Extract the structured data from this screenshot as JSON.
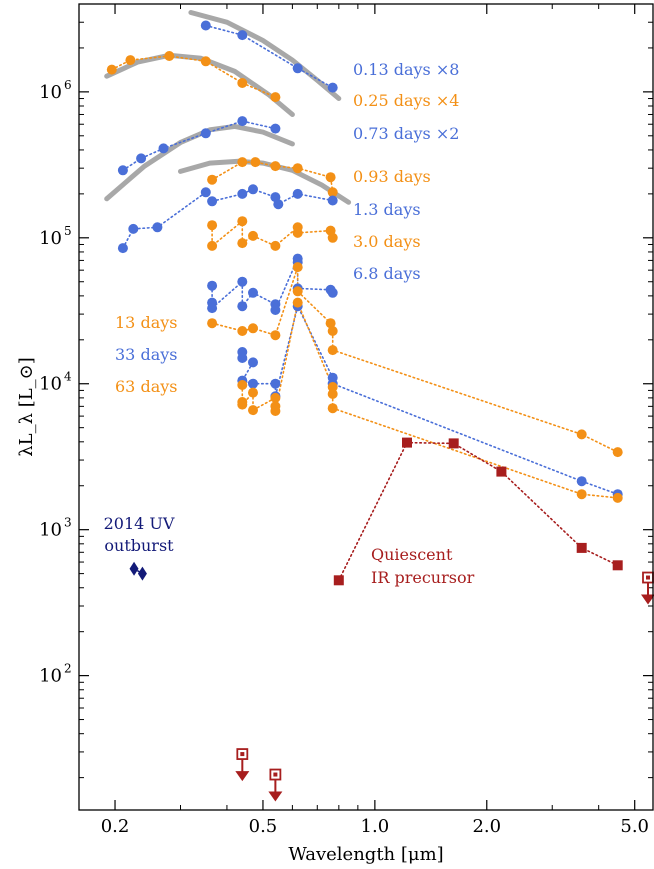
{
  "chart_data": {
    "type": "scatter",
    "title": "",
    "xlabel": "Wavelength [μm]",
    "ylabel": "λL_λ [L_⊙]",
    "xscale": "log",
    "yscale": "log",
    "xlim": [
      0.16,
      5.6
    ],
    "ylim": [
      12,
      4000000
    ],
    "x_ticks": [
      {
        "value": 0.2,
        "label": "0.2"
      },
      {
        "value": 0.5,
        "label": "0.5"
      },
      {
        "value": 1.0,
        "label": "1.0"
      },
      {
        "value": 2.0,
        "label": "2.0"
      },
      {
        "value": 5.0,
        "label": "5.0"
      }
    ],
    "y_ticks": [
      {
        "value": 100,
        "base": "10",
        "exp": "2"
      },
      {
        "value": 1000,
        "base": "10",
        "exp": "3"
      },
      {
        "value": 10000,
        "base": "10",
        "exp": "4"
      },
      {
        "value": 100000,
        "base": "10",
        "exp": "5"
      },
      {
        "value": 1000000,
        "base": "10",
        "exp": "6"
      }
    ],
    "legend_placement": "right of series, inline",
    "colors": {
      "blue": "#4a6fd8",
      "orange": "#f39016",
      "red": "#a71e1e",
      "navy": "#131a78",
      "fit": "#9e9e9e"
    },
    "series": [
      {
        "name": "0.13 days ×8",
        "color": "#4a6fd8",
        "marker": "circle",
        "points": [
          [
            0.351,
            2850000
          ],
          [
            0.44,
            2450000
          ],
          [
            0.62,
            1450000
          ],
          [
            0.77,
            1070000
          ]
        ]
      },
      {
        "name": "0.25 days ×4",
        "color": "#f39016",
        "marker": "circle",
        "points": [
          [
            0.196,
            1420000
          ],
          [
            0.22,
            1650000
          ],
          [
            0.28,
            1760000
          ],
          [
            0.351,
            1620000
          ],
          [
            0.44,
            1150000
          ],
          [
            0.54,
            920000
          ]
        ]
      },
      {
        "name": "0.73 days ×2",
        "color": "#4a6fd8",
        "marker": "circle",
        "points": [
          [
            0.21,
            290000
          ],
          [
            0.235,
            350000
          ],
          [
            0.27,
            410000
          ],
          [
            0.351,
            520000
          ],
          [
            0.44,
            630000
          ],
          [
            0.54,
            560000
          ]
        ]
      },
      {
        "name": "0.93 days",
        "color": "#f39016",
        "marker": "circle",
        "points": [
          [
            0.365,
            250000
          ],
          [
            0.44,
            330000
          ],
          [
            0.477,
            330000
          ],
          [
            0.54,
            310000
          ],
          [
            0.62,
            300000
          ],
          [
            0.76,
            260000
          ],
          [
            0.77,
            205000
          ]
        ]
      },
      {
        "name": "1.3 days",
        "color": "#4a6fd8",
        "marker": "circle",
        "points": [
          [
            0.21,
            85000
          ],
          [
            0.224,
            115000
          ],
          [
            0.26,
            118000
          ],
          [
            0.351,
            205000
          ],
          [
            0.365,
            178000
          ],
          [
            0.44,
            200000
          ],
          [
            0.47,
            215000
          ],
          [
            0.54,
            190000
          ],
          [
            0.55,
            170000
          ],
          [
            0.62,
            200000
          ],
          [
            0.77,
            180000
          ]
        ]
      },
      {
        "name": "3.0 days",
        "color": "#f39016",
        "marker": "circle",
        "points": [
          [
            0.365,
            122000
          ],
          [
            0.365,
            88000
          ],
          [
            0.44,
            130000
          ],
          [
            0.44,
            92000
          ],
          [
            0.47,
            103000
          ],
          [
            0.54,
            88000
          ],
          [
            0.62,
            118000
          ],
          [
            0.62,
            108000
          ],
          [
            0.76,
            112000
          ],
          [
            0.77,
            100000
          ]
        ]
      },
      {
        "name": "6.8 days",
        "color": "#4a6fd8",
        "marker": "circle",
        "points": [
          [
            0.365,
            47000
          ],
          [
            0.365,
            36000
          ],
          [
            0.365,
            33000
          ],
          [
            0.44,
            50000
          ],
          [
            0.44,
            34000
          ],
          [
            0.47,
            42000
          ],
          [
            0.54,
            35000
          ],
          [
            0.54,
            32000
          ],
          [
            0.62,
            72000
          ],
          [
            0.62,
            68000
          ],
          [
            0.62,
            45000
          ],
          [
            0.76,
            44000
          ],
          [
            0.77,
            42000
          ]
        ]
      },
      {
        "name": "13 days",
        "color": "#f39016",
        "marker": "circle",
        "points": [
          [
            0.365,
            26000
          ],
          [
            0.44,
            23000
          ],
          [
            0.47,
            24000
          ],
          [
            0.54,
            21500
          ],
          [
            0.62,
            63000
          ],
          [
            0.62,
            43000
          ],
          [
            0.76,
            26000
          ],
          [
            0.77,
            23000
          ],
          [
            0.77,
            17000
          ],
          [
            3.6,
            4500
          ],
          [
            4.5,
            3400
          ]
        ]
      },
      {
        "name": "33 days",
        "color": "#4a6fd8",
        "marker": "circle",
        "points": [
          [
            0.44,
            16500
          ],
          [
            0.44,
            15000
          ],
          [
            0.47,
            14000
          ],
          [
            0.44,
            10500
          ],
          [
            0.47,
            10000
          ],
          [
            0.54,
            10000
          ],
          [
            0.54,
            8200
          ],
          [
            0.62,
            34000
          ],
          [
            0.77,
            11000
          ],
          [
            0.77,
            10000
          ],
          [
            3.6,
            2150
          ],
          [
            4.5,
            1750
          ]
        ]
      },
      {
        "name": "63 days",
        "color": "#f39016",
        "marker": "circle",
        "points": [
          [
            0.44,
            9800
          ],
          [
            0.44,
            7500
          ],
          [
            0.44,
            7200
          ],
          [
            0.47,
            8700
          ],
          [
            0.47,
            6600
          ],
          [
            0.54,
            8000
          ],
          [
            0.54,
            7000
          ],
          [
            0.54,
            6500
          ],
          [
            0.62,
            36000
          ],
          [
            0.77,
            9500
          ],
          [
            0.77,
            8500
          ],
          [
            0.77,
            6800
          ],
          [
            3.6,
            1750
          ],
          [
            4.5,
            1650
          ]
        ]
      },
      {
        "name": "2014 UV outburst",
        "color": "#131a78",
        "marker": "diamond",
        "points": [
          [
            0.225,
            540
          ],
          [
            0.237,
            500
          ]
        ]
      },
      {
        "name": "Quiescent IR precursor",
        "color": "#a71e1e",
        "marker": "square",
        "points": [
          [
            0.8,
            450
          ],
          [
            1.22,
            3950
          ],
          [
            1.63,
            3900
          ],
          [
            2.19,
            2500
          ],
          [
            3.6,
            750
          ],
          [
            4.5,
            570
          ]
        ]
      }
    ],
    "upper_limits": [
      {
        "x": 0.44,
        "y": 29
      },
      {
        "x": 0.54,
        "y": 21
      },
      {
        "x": 5.6,
        "y": 470
      }
    ],
    "fit_curves": [
      {
        "x": [
          0.32,
          0.4,
          0.5,
          0.6,
          0.7,
          0.8
        ],
        "y": [
          3500000,
          3000000,
          2250000,
          1650000,
          1200000,
          900000
        ]
      },
      {
        "x": [
          0.19,
          0.23,
          0.28,
          0.34,
          0.42,
          0.52,
          0.6
        ],
        "y": [
          1280000,
          1600000,
          1780000,
          1700000,
          1380000,
          950000,
          700000
        ]
      },
      {
        "x": [
          0.19,
          0.24,
          0.3,
          0.36,
          0.42,
          0.5,
          0.6
        ],
        "y": [
          185000,
          310000,
          450000,
          550000,
          580000,
          530000,
          440000
        ]
      },
      {
        "x": [
          0.3,
          0.36,
          0.43,
          0.5,
          0.6,
          0.72,
          0.85
        ],
        "y": [
          285000,
          325000,
          335000,
          325000,
          290000,
          230000,
          175000
        ]
      }
    ],
    "labels": [
      {
        "text": "0.13 days ×8",
        "color": "#4a6fd8"
      },
      {
        "text": "0.25 days ×4",
        "color": "#f39016"
      },
      {
        "text": "0.73 days ×2",
        "color": "#4a6fd8"
      },
      {
        "text": "0.93 days",
        "color": "#f39016"
      },
      {
        "text": "1.3 days",
        "color": "#4a6fd8"
      },
      {
        "text": "3.0 days",
        "color": "#f39016"
      },
      {
        "text": "6.8 days",
        "color": "#4a6fd8"
      },
      {
        "text": "13 days",
        "color": "#f39016"
      },
      {
        "text": "33 days",
        "color": "#4a6fd8"
      },
      {
        "text": "63 days",
        "color": "#f39016"
      }
    ],
    "annotations": {
      "uv_line1": "2014 UV",
      "uv_line2": "outburst",
      "ir_line1": "Quiescent",
      "ir_line2": "IR precursor"
    }
  }
}
